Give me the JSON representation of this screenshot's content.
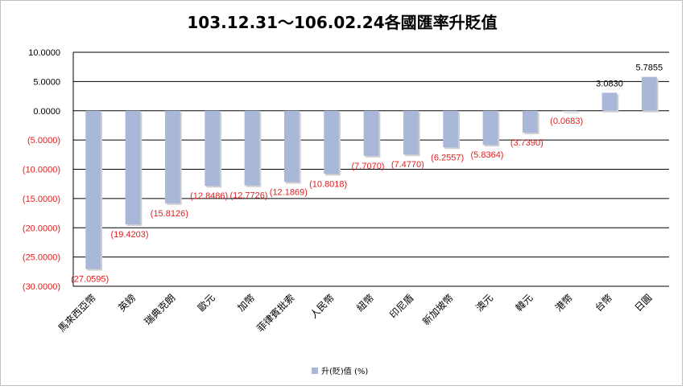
{
  "chart_data": {
    "type": "bar",
    "title": "103.12.31～106.02.24各國匯率升貶值",
    "categories": [
      "馬來西亞幣",
      "英鎊",
      "瑞典克朗",
      "歐元",
      "加幣",
      "菲律賓批索",
      "人民幣",
      "紐幣",
      "印尼盾",
      "新加坡幣",
      "澳元",
      "韓元",
      "港幣",
      "台幣",
      "日圓"
    ],
    "series": [
      {
        "name": "升(貶)值 (%)",
        "values": [
          -27.0595,
          -19.4203,
          -15.8126,
          -12.8486,
          -12.7726,
          -12.1869,
          -10.8018,
          -7.707,
          -7.477,
          -6.2557,
          -5.8364,
          -3.739,
          -0.0683,
          3.083,
          5.7855
        ],
        "labels": [
          "(27.0595)",
          "(19.4203)",
          "(15.8126)",
          "(12.8486)",
          "(12.7726)",
          "(12.1869)",
          "(10.8018)",
          "(7.7070)",
          "(7.4770)",
          "(6.2557)",
          "(5.8364)",
          "(3.7390)",
          "(0.0683)",
          "3.0830",
          "5.7855"
        ]
      }
    ],
    "y_ticks": [
      {
        "value": 10,
        "label": "10.0000"
      },
      {
        "value": 5,
        "label": "5.0000"
      },
      {
        "value": 0,
        "label": "0.0000"
      },
      {
        "value": -5,
        "label": "(5.0000)"
      },
      {
        "value": -10,
        "label": "(10.0000)"
      },
      {
        "value": -15,
        "label": "(15.0000)"
      },
      {
        "value": -20,
        "label": "(20.0000)"
      },
      {
        "value": -25,
        "label": "(25.0000)"
      },
      {
        "value": -30,
        "label": "(30.0000)"
      }
    ],
    "ylim": [
      -30,
      10
    ],
    "grid": true,
    "legend_position": "bottom",
    "colors": {
      "bar": "#a9b8d8",
      "negative_text": "#e02020",
      "positive_text": "#000000",
      "grid": "#000000"
    }
  }
}
